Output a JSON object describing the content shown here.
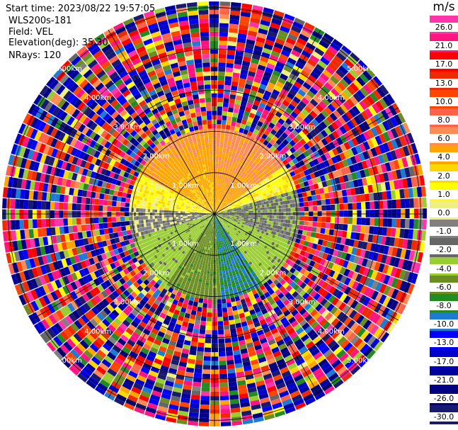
{
  "header": {
    "start_time": "Start time: 2023/08/22 19:57:05",
    "instrument": "WLS200s-181",
    "field": "Field: VEL",
    "elevation": "Elevation(deg): 35.30",
    "nrays": "NRays: 120"
  },
  "colorbar": {
    "unit": "m/s",
    "ticks": [
      "26.0",
      "21.0",
      "17.0",
      "13.0",
      "10.0",
      "8.0",
      "6.0",
      "4.0",
      "2.0",
      "1.0",
      "0.0",
      "-1.0",
      "-2.0",
      "-4.0",
      "-6.0",
      "-8.0",
      "-10.0",
      "-13.0",
      "-17.0",
      "-21.0",
      "-26.0",
      "-30.0"
    ],
    "colors": [
      "#ff33aa",
      "#ff1480",
      "#ff0000",
      "#ee2a00",
      "#ff4500",
      "#ff6347",
      "#ff8c55",
      "#ffa500",
      "#ffd700",
      "#ffff00",
      "#f0f080",
      "#808080",
      "#666666",
      "#9acd32",
      "#6b8e23",
      "#228b22",
      "#1e7ad2",
      "#0000ff",
      "#0000cd",
      "#0000a0",
      "#000080",
      "#191970"
    ]
  },
  "chart_data": {
    "type": "heatmap",
    "title": "",
    "subtitle": "",
    "projection": "polar PPI",
    "field": "VEL",
    "units": "m/s",
    "nrays": 120,
    "elevation_deg": 35.3,
    "vmin": -30.0,
    "vmax": 30.0,
    "range_ring_labels": [
      "1.00km",
      "2.00km",
      "3.00km",
      "4.00km",
      "5.00km"
    ],
    "range_rings_km": [
      1,
      2,
      3,
      4,
      5
    ],
    "max_range_km": 5.15,
    "valid_range_km": 2.05,
    "sector_mean_velocity": [
      {
        "azimuth_from_deg": 300,
        "azimuth_to_deg": 360,
        "velocity_ms": 3.5
      },
      {
        "azimuth_from_deg": 0,
        "azimuth_to_deg": 55,
        "velocity_ms": 4.5
      },
      {
        "azimuth_from_deg": 55,
        "azimuth_to_deg": 75,
        "velocity_ms": 1.5
      },
      {
        "azimuth_from_deg": 75,
        "azimuth_to_deg": 110,
        "velocity_ms": -1.5
      },
      {
        "azimuth_from_deg": 110,
        "azimuth_to_deg": 145,
        "velocity_ms": -3.0
      },
      {
        "azimuth_from_deg": 145,
        "azimuth_to_deg": 175,
        "velocity_ms": -8.0
      },
      {
        "azimuth_from_deg": 175,
        "azimuth_to_deg": 215,
        "velocity_ms": -5.0
      },
      {
        "azimuth_from_deg": 215,
        "azimuth_to_deg": 255,
        "velocity_ms": -3.0
      },
      {
        "azimuth_from_deg": 255,
        "azimuth_to_deg": 275,
        "velocity_ms": -0.5
      },
      {
        "azimuth_from_deg": 275,
        "azimuth_to_deg": 300,
        "velocity_ms": 1.5
      }
    ],
    "grid": true
  }
}
